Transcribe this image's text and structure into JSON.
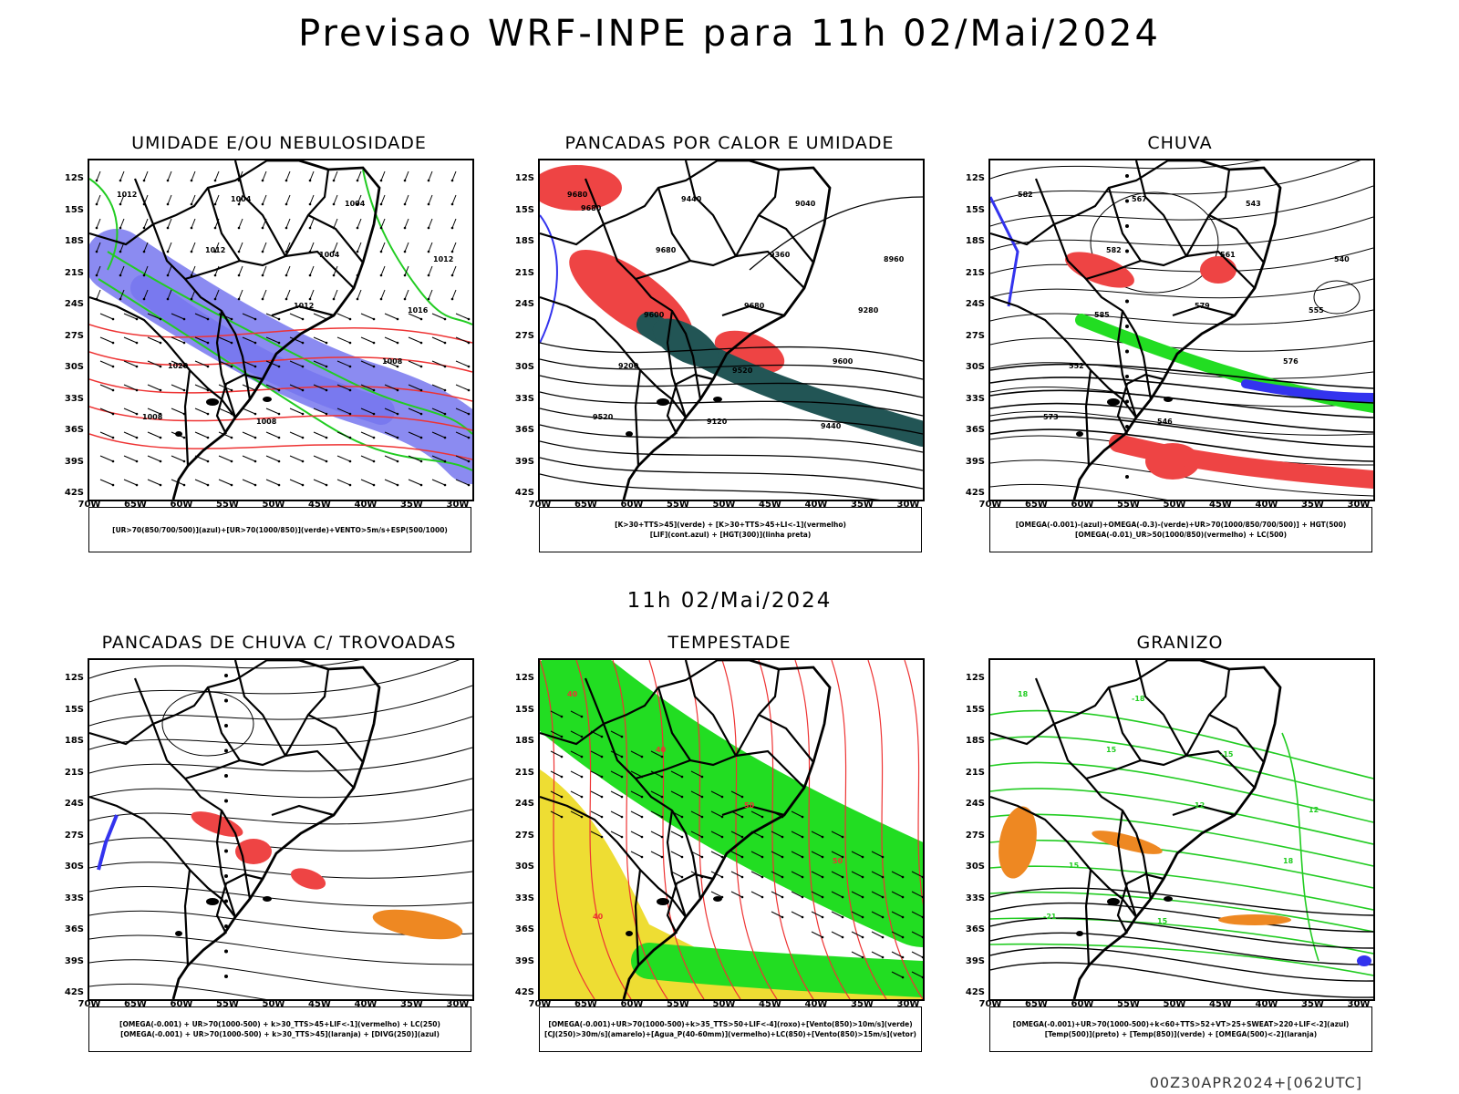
{
  "title": "Previsao WRF-INPE  para 11h 02/Mai/2024",
  "mid_title": "11h 02/Mai/2024",
  "footer": "00Z30APR2024+[062UTC]",
  "axes": {
    "lat_labels": [
      "12S",
      "15S",
      "18S",
      "21S",
      "24S",
      "27S",
      "30S",
      "33S",
      "36S",
      "39S",
      "42S"
    ],
    "lon_labels": [
      "70W",
      "65W",
      "60W",
      "55W",
      "50W",
      "45W",
      "40W",
      "35W",
      "30W"
    ]
  },
  "colors": {
    "blue_field": "#7777ee",
    "green_field": "#22dd22",
    "red_field": "#ee4444",
    "dark_teal": "#225555",
    "yellow_field": "#eedd33",
    "orange_field": "#ee8822",
    "contour_black": "#000000",
    "contour_red": "#ee3333",
    "contour_green": "#22cc22",
    "contour_blue": "#3333ee"
  },
  "panels": [
    {
      "title": "UMIDADE E/OU NEBULOSIDADE",
      "legend": [
        "[UR>70(850/700/500)](azul)+[UR>70(1000/850)](verde)+VENTO>5m/s+ESP(500/1000)"
      ],
      "contour_labels": [
        "1012",
        "1012",
        "1012",
        "1008",
        "1008",
        "1004",
        "1004",
        "1016",
        "1020",
        "1008",
        "1004",
        "1012"
      ]
    },
    {
      "title": "PANCADAS POR CALOR E UMIDADE",
      "legend": [
        "[K>30+TTS>45](verde) + [K>30+TTS>45+LI<-1](vermelho)",
        "[LIF](cont.azul) + [HGT(300)](linha preta)"
      ],
      "contour_labels": [
        "9680",
        "9680",
        "9680",
        "9600",
        "9520",
        "9440",
        "9360",
        "9280",
        "9200",
        "9120",
        "9040",
        "8960",
        "9600",
        "9520",
        "9440",
        "9680"
      ]
    },
    {
      "title": "CHUVA",
      "legend": [
        "[OMEGA(-0.001)-(azul)+OMEGA(-0.3)-(verde)+UR>70(1000/850/700/500)] + HGT(500)",
        "[OMEGA(-0.01)_UR>50(1000/850)(vermelho) + LC(500)"
      ],
      "contour_labels": [
        "582",
        "582",
        "579",
        "576",
        "573",
        "567",
        "561",
        "555",
        "552",
        "546",
        "543",
        "540",
        "585"
      ]
    },
    {
      "title": "PANCADAS DE CHUVA C/ TROVOADAS",
      "legend": [
        "[OMEGA(-0.001) + UR>70(1000-500) + k>30_TTS>45+LIF<-1](vermelho) + LC(250)",
        "[OMEGA(-0.001) + UR>70(1000-500) + k>30_TTS>45](laranja) + [DIVG(250)](azul)"
      ],
      "contour_labels": []
    },
    {
      "title": "TEMPESTADE",
      "legend": [
        "[OMEGA(-0.001)+UR>70(1000-500)+k>35_TTS>50+LIF<-4](roxo)+[Vento(850)>10m/s](verde)",
        "[CJ(250)>30m/s](amarelo)+[Agua_P(40-60mm)](vermelho)+LC(850)+[Vento(850)>15m/s](vetor)"
      ],
      "contour_labels": [
        "40",
        "40",
        "50",
        "50",
        "40"
      ]
    },
    {
      "title": "GRANIZO",
      "legend": [
        "[OMEGA(-0.001)+UR>70(1000-500)+k<60+TTS>52+VT>25+SWEAT>220+LIF<-2](azul)",
        "[Temp(500)](preto) + [Temp(850)](verde) + [OMEGA(500)<-2](laranja)"
      ],
      "contour_labels": [
        "18",
        "15",
        "12",
        "18",
        "-21",
        "-18",
        "-15",
        "12",
        "15",
        "15"
      ]
    }
  ]
}
